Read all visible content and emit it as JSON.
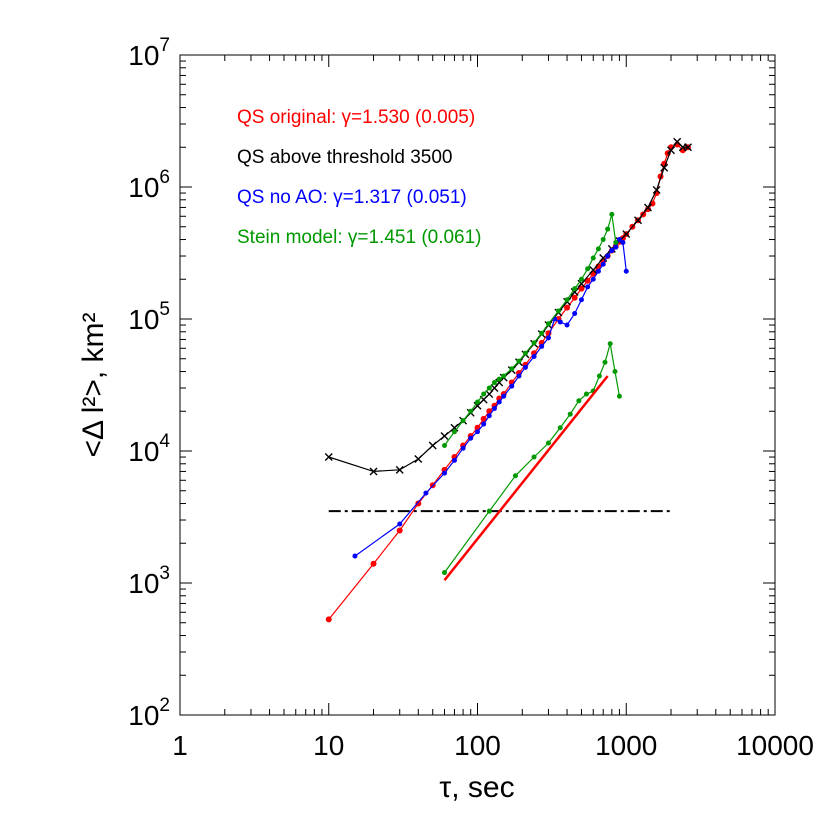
{
  "chart_data": {
    "type": "scatter",
    "x_scale": "log",
    "y_scale": "log",
    "xlim": [
      1,
      10000
    ],
    "ylim": [
      100,
      10000000
    ],
    "xlabel": "τ, sec",
    "ylabel": "<Δ l²>, km²",
    "x_ticks": [
      {
        "value": 1,
        "label": "1"
      },
      {
        "value": 10,
        "label": "10"
      },
      {
        "value": 100,
        "label": "100"
      },
      {
        "value": 1000,
        "label": "1000"
      },
      {
        "value": 10000,
        "label": "10000"
      }
    ],
    "y_ticks": [
      {
        "value": 100,
        "base": "10",
        "exp": "2"
      },
      {
        "value": 1000,
        "base": "10",
        "exp": "3"
      },
      {
        "value": 10000,
        "base": "10",
        "exp": "4"
      },
      {
        "value": 100000,
        "base": "10",
        "exp": "5"
      },
      {
        "value": 1000000,
        "base": "10",
        "exp": "6"
      },
      {
        "value": 10000000,
        "base": "10",
        "exp": "7"
      }
    ],
    "threshold": {
      "y": 3500,
      "x_start": 10,
      "x_end": 2000,
      "style": "dash-dot"
    },
    "legend_placement": "top-left",
    "legend": [
      {
        "text": "QS original: γ=1.530 (0.005)",
        "color": "#ff0000"
      },
      {
        "text": "QS above threshold 3500",
        "color": "#000000"
      },
      {
        "text": "QS no AO: γ=1.317 (0.051)",
        "color": "#0000ff"
      },
      {
        "text": "Stein model: γ=1.451 (0.061)",
        "color": "#009900"
      }
    ],
    "series": [
      {
        "color": "#ff0000",
        "marker": "dot",
        "x": [
          10,
          20,
          30,
          40,
          50,
          60,
          70,
          80,
          90,
          100,
          110,
          120,
          130,
          140,
          150,
          170,
          190,
          210,
          240,
          270,
          300,
          350,
          400,
          450,
          500,
          550,
          600,
          650,
          700,
          750,
          800,
          850,
          900,
          950,
          1000,
          1100,
          1200,
          1300,
          1400,
          1500,
          1600,
          1700,
          1800,
          1900,
          2000,
          2200,
          2400,
          2600
        ],
        "y": [
          530,
          1400,
          2500,
          4000,
          5500,
          7200,
          9000,
          11000,
          13000,
          15000,
          17500,
          20000,
          22000,
          25000,
          27000,
          33000,
          39000,
          45000,
          55000,
          66000,
          78000,
          100000,
          122000,
          145000,
          170000,
          195000,
          220000,
          250000,
          275000,
          300000,
          330000,
          355000,
          385000,
          410000,
          440000,
          500000,
          560000,
          620000,
          680000,
          750000,
          900000,
          1200000,
          1500000,
          1800000,
          2000000,
          2100000,
          1900000,
          2000000
        ]
      },
      {
        "color": "#000000",
        "marker": "x",
        "x": [
          10,
          20,
          30,
          40,
          50,
          60,
          70,
          80,
          90,
          100,
          110,
          120,
          130,
          140,
          150,
          170,
          190,
          210,
          240,
          270,
          300,
          350,
          400,
          450,
          500,
          600,
          700,
          800,
          900,
          1000,
          1200,
          1400,
          1600,
          1800,
          2000,
          2200,
          2400,
          2600
        ],
        "y": [
          9000,
          7000,
          7200,
          8700,
          11000,
          13000,
          15000,
          17000,
          19500,
          22000,
          24500,
          27000,
          30000,
          33000,
          36000,
          41000,
          47000,
          54000,
          65000,
          77000,
          90000,
          112000,
          135000,
          160000,
          185000,
          235000,
          290000,
          340000,
          390000,
          440000,
          560000,
          700000,
          950000,
          1400000,
          1900000,
          2200000,
          2000000,
          2000000
        ]
      },
      {
        "color": "#0000ff",
        "marker": "dot",
        "x": [
          15,
          30,
          45,
          60,
          70,
          80,
          90,
          100,
          110,
          120,
          130,
          140,
          150,
          170,
          190,
          210,
          240,
          270,
          300,
          330,
          360,
          400,
          450,
          500,
          550,
          600,
          650,
          700,
          750,
          800,
          850,
          900,
          950,
          1000
        ],
        "y": [
          1600,
          2800,
          4800,
          6800,
          8500,
          10500,
          12500,
          14000,
          16000,
          18500,
          21000,
          23500,
          26000,
          31000,
          37000,
          43000,
          52000,
          62000,
          72000,
          100000,
          95000,
          90000,
          110000,
          140000,
          175000,
          200000,
          230000,
          260000,
          300000,
          330000,
          350000,
          400000,
          380000,
          230000
        ]
      },
      {
        "color": "#009900",
        "marker": "dot",
        "x": [
          60,
          120,
          180,
          240,
          300,
          360,
          420,
          480,
          540,
          600,
          660,
          720,
          780,
          840,
          900
        ],
        "y": [
          1200,
          3500,
          6500,
          9000,
          11500,
          15000,
          19000,
          24000,
          27000,
          28500,
          37000,
          47000,
          65000,
          40000,
          26000
        ]
      },
      {
        "color": "#009900",
        "marker": "dot",
        "x": [
          60,
          70,
          80,
          90,
          100,
          110,
          120,
          130,
          140,
          150,
          170,
          190,
          210,
          240,
          270,
          300,
          350,
          400,
          450,
          500,
          550,
          600,
          650,
          700,
          750,
          800,
          850
        ],
        "y": [
          11000,
          14000,
          17000,
          20000,
          23500,
          27000,
          30000,
          33000,
          35000,
          37000,
          42000,
          48000,
          55000,
          66000,
          78000,
          92000,
          115000,
          140000,
          170000,
          200000,
          240000,
          290000,
          340000,
          400000,
          480000,
          620000,
          380000
        ]
      }
    ],
    "fit_lines": [
      {
        "color": "#ff0000",
        "x": [
          60,
          750
        ],
        "y": [
          1050,
          37000
        ]
      }
    ]
  }
}
